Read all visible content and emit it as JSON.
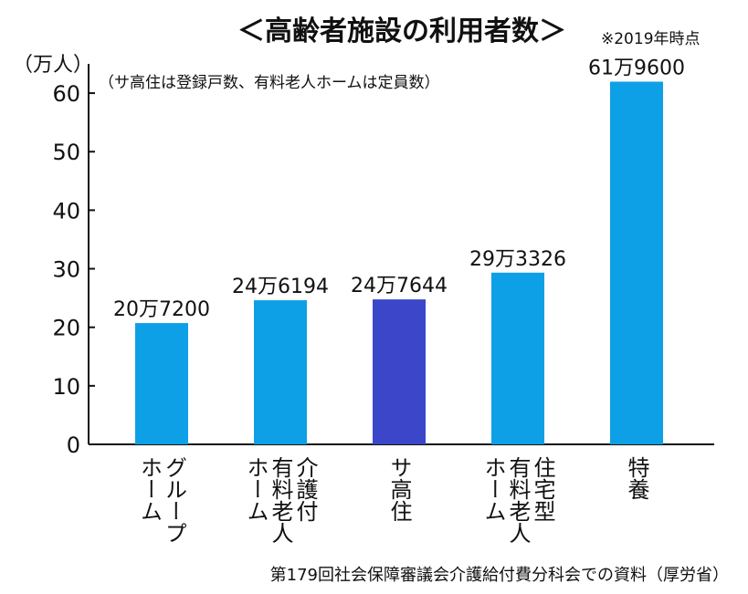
{
  "chart_data": {
    "type": "bar",
    "title": "＜高齢者施設の利用者数＞",
    "note": "※2019年時点",
    "y_label": "（万人）",
    "subtitle": "（サ高住は登録戸数、有料老人ホームは定員数）",
    "source": "第179回社会保障審議会介護給付費分科会での資料（厚労省）",
    "categories": [
      [
        "グループ",
        "ホーム"
      ],
      [
        "介護付",
        "有料老人",
        "ホーム"
      ],
      [
        "サ高住"
      ],
      [
        "住宅型",
        "有料老人",
        "ホーム"
      ],
      [
        "特養"
      ]
    ],
    "values": [
      20.72,
      24.6194,
      24.7644,
      29.3326,
      61.96
    ],
    "value_labels": [
      "20万7200",
      "24万6194",
      "24万7644",
      "29万3326",
      "61万9600"
    ],
    "colors": [
      "#0ea0e6",
      "#0ea0e6",
      "#3c46c8",
      "#0ea0e6",
      "#0ea0e6"
    ],
    "ylim": [
      0,
      65
    ],
    "yticks": [
      0,
      10,
      20,
      30,
      40,
      50,
      60
    ]
  }
}
